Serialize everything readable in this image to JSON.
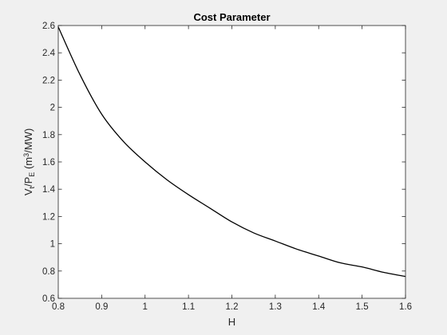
{
  "chart_data": {
    "type": "line",
    "title": "Cost Parameter",
    "xlabel": "H",
    "ylabel": {
      "parts": [
        {
          "text": "V",
          "sub": false,
          "sup": false
        },
        {
          "text": "t",
          "sub": true,
          "sup": false
        },
        {
          "text": "/P",
          "sub": false,
          "sup": false
        },
        {
          "text": "E",
          "sub": true,
          "sup": false
        },
        {
          "text": " (m",
          "sub": false,
          "sup": false
        },
        {
          "text": "3",
          "sub": false,
          "sup": true
        },
        {
          "text": "/MW)",
          "sub": false,
          "sup": false
        }
      ]
    },
    "xlim": [
      0.8,
      1.6
    ],
    "ylim": [
      0.6,
      2.6
    ],
    "xticks": [
      0.8,
      0.9,
      1.0,
      1.1,
      1.2,
      1.3,
      1.4,
      1.5,
      1.6
    ],
    "xtick_labels": [
      "0.8",
      "0.9",
      "1",
      "1.1",
      "1.2",
      "1.3",
      "1.4",
      "1.5",
      "1.6"
    ],
    "yticks": [
      0.6,
      0.8,
      1.0,
      1.2,
      1.4,
      1.6,
      1.8,
      2.0,
      2.2,
      2.4,
      2.6
    ],
    "ytick_labels": [
      "0.6",
      "0.8",
      "1",
      "1.2",
      "1.4",
      "1.6",
      "1.8",
      "2",
      "2.2",
      "2.4",
      "2.6"
    ],
    "grid": false,
    "series": [
      {
        "color": "#000000",
        "x": [
          0.8,
          0.85,
          0.9,
          0.95,
          1.0,
          1.05,
          1.1,
          1.15,
          1.2,
          1.25,
          1.3,
          1.35,
          1.4,
          1.45,
          1.5,
          1.55,
          1.6
        ],
        "y": [
          2.59,
          2.24,
          1.95,
          1.75,
          1.6,
          1.47,
          1.36,
          1.26,
          1.16,
          1.08,
          1.02,
          0.96,
          0.91,
          0.86,
          0.83,
          0.79,
          0.76
        ]
      }
    ],
    "colors": {
      "figure_background": "#f0f0f0",
      "axes_background": "#ffffff",
      "axes_color": "#262626"
    }
  }
}
